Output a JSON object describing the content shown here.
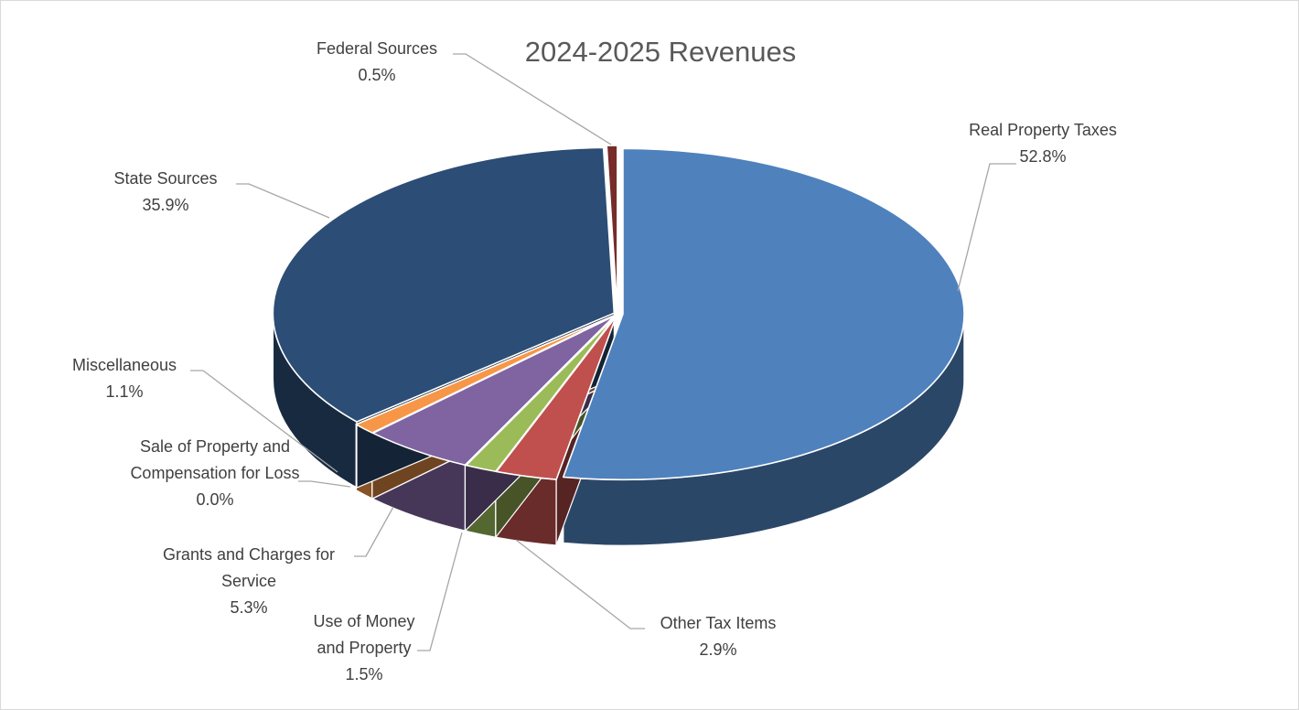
{
  "chart_data": {
    "type": "pie",
    "variant": "3d-pie",
    "title": "2024-2025 Revenues",
    "legend": "none",
    "slices": [
      {
        "name": "Real Property Taxes",
        "value": 52.8,
        "label": "52.8%",
        "color": "#4f81bd"
      },
      {
        "name": "Other Tax Items",
        "value": 2.9,
        "label": "2.9%",
        "color": "#c0504d"
      },
      {
        "name": "Use of Money and Property",
        "value": 1.5,
        "label": "1.5%",
        "color": "#9bbb59"
      },
      {
        "name": "Grants and Charges for Service",
        "value": 5.3,
        "label": "5.3%",
        "color": "#8064a2"
      },
      {
        "name": "Sale of Property and Compensation for Loss",
        "value": 0.0,
        "label": "0.0%",
        "color": "#4bacc6"
      },
      {
        "name": "Miscellaneous",
        "value": 1.1,
        "label": "1.1%",
        "color": "#f79646"
      },
      {
        "name": "State Sources",
        "value": 35.9,
        "label": "35.9%",
        "color": "#2c4d75"
      },
      {
        "name": "Federal Sources",
        "value": 0.5,
        "label": "0.5%",
        "color": "#772c2a"
      }
    ]
  }
}
